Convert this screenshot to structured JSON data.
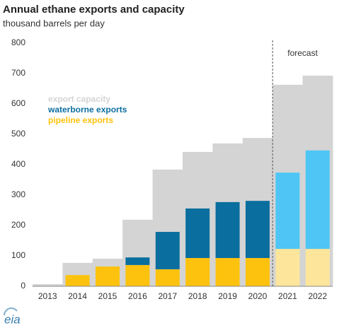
{
  "chart_data": {
    "type": "bar",
    "title": "Annual ethane exports and capacity",
    "subtitle": "thousand barrels per day",
    "categories": [
      "2013",
      "2014",
      "2015",
      "2016",
      "2017",
      "2018",
      "2019",
      "2020",
      "2021",
      "2022"
    ],
    "series": [
      {
        "name": "export capacity",
        "color": "#d4d4d4",
        "layer": "background",
        "values": [
          7,
          77,
          91,
          219,
          384,
          442,
          470,
          488,
          663,
          693
        ]
      },
      {
        "name": "pipeline exports",
        "color": "#fdc20e",
        "forecast_color": "#fde69b",
        "values": [
          0,
          37,
          65,
          70,
          56,
          93,
          93,
          93,
          123,
          123
        ]
      },
      {
        "name": "waterborne exports",
        "color": "#0a6e9e",
        "forecast_color": "#4ec5f5",
        "values": [
          0,
          0,
          0,
          25,
          123,
          163,
          184,
          188,
          251,
          324
        ]
      }
    ],
    "forecast_from": "2021",
    "forecast_label": "forecast",
    "ylim": [
      0,
      800
    ],
    "yticks": [
      0,
      100,
      200,
      300,
      400,
      500,
      600,
      700,
      800
    ],
    "grid": false,
    "logo": "eia"
  }
}
